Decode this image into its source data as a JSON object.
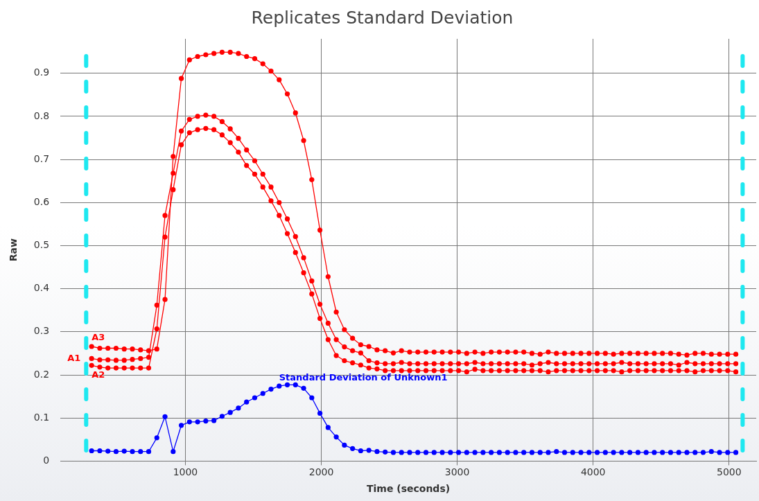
{
  "chart_data": {
    "type": "line",
    "title": "Replicates Standard Deviation",
    "xlabel": "Time (seconds)",
    "ylabel": "Raw",
    "x": [
      310,
      370,
      430,
      490,
      550,
      610,
      670,
      730,
      790,
      850,
      910,
      970,
      1030,
      1090,
      1150,
      1210,
      1270,
      1330,
      1390,
      1450,
      1510,
      1570,
      1630,
      1690,
      1750,
      1810,
      1870,
      1930,
      1990,
      2050,
      2110,
      2170,
      2230,
      2290,
      2350,
      2410,
      2470,
      2530,
      2590,
      2650,
      2710,
      2770,
      2830,
      2890,
      2950,
      3010,
      3070,
      3130,
      3190,
      3250,
      3310,
      3370,
      3430,
      3490,
      3550,
      3610,
      3670,
      3730,
      3790,
      3850,
      3910,
      3970,
      4030,
      4090,
      4150,
      4210,
      4270,
      4330,
      4390,
      4450,
      4510,
      4570,
      4630,
      4690,
      4750,
      4810,
      4870,
      4930,
      4990,
      5050
    ],
    "series": [
      {
        "name": "A3",
        "color": "#ff0000",
        "values": [
          0.266,
          0.262,
          0.262,
          0.262,
          0.26,
          0.26,
          0.258,
          0.256,
          0.26,
          0.375,
          0.707,
          0.888,
          0.931,
          0.939,
          0.943,
          0.946,
          0.949,
          0.949,
          0.946,
          0.939,
          0.934,
          0.922,
          0.905,
          0.885,
          0.852,
          0.808,
          0.744,
          0.653,
          0.536,
          0.428,
          0.346,
          0.305,
          0.285,
          0.27,
          0.266,
          0.258,
          0.256,
          0.251,
          0.256,
          0.253,
          0.253,
          0.253,
          0.253,
          0.253,
          0.253,
          0.253,
          0.25,
          0.253,
          0.25,
          0.253,
          0.253,
          0.253,
          0.253,
          0.253,
          0.25,
          0.248,
          0.253,
          0.25,
          0.25,
          0.25,
          0.25,
          0.25,
          0.25,
          0.25,
          0.248,
          0.25,
          0.25,
          0.25,
          0.25,
          0.25,
          0.25,
          0.25,
          0.248,
          0.246,
          0.25,
          0.25,
          0.248,
          0.248,
          0.248,
          0.248
        ]
      },
      {
        "name": "A1",
        "color": "#ff0000",
        "values": [
          0.238,
          0.235,
          0.235,
          0.234,
          0.234,
          0.236,
          0.238,
          0.241,
          0.362,
          0.57,
          0.668,
          0.766,
          0.793,
          0.8,
          0.803,
          0.8,
          0.788,
          0.771,
          0.749,
          0.722,
          0.697,
          0.666,
          0.636,
          0.6,
          0.562,
          0.521,
          0.472,
          0.418,
          0.364,
          0.32,
          0.282,
          0.265,
          0.256,
          0.251,
          0.233,
          0.228,
          0.226,
          0.226,
          0.229,
          0.226,
          0.226,
          0.226,
          0.226,
          0.226,
          0.226,
          0.226,
          0.226,
          0.229,
          0.226,
          0.226,
          0.226,
          0.226,
          0.226,
          0.226,
          0.223,
          0.226,
          0.229,
          0.226,
          0.226,
          0.226,
          0.226,
          0.226,
          0.226,
          0.226,
          0.226,
          0.229,
          0.226,
          0.226,
          0.226,
          0.226,
          0.226,
          0.226,
          0.223,
          0.229,
          0.226,
          0.226,
          0.226,
          0.226,
          0.226,
          0.226
        ]
      },
      {
        "name": "A2",
        "color": "#ff0000",
        "values": [
          0.222,
          0.218,
          0.216,
          0.216,
          0.216,
          0.216,
          0.216,
          0.216,
          0.307,
          0.52,
          0.63,
          0.734,
          0.762,
          0.769,
          0.772,
          0.769,
          0.757,
          0.739,
          0.717,
          0.686,
          0.666,
          0.636,
          0.604,
          0.57,
          0.528,
          0.484,
          0.437,
          0.388,
          0.331,
          0.282,
          0.245,
          0.233,
          0.228,
          0.223,
          0.216,
          0.214,
          0.21,
          0.21,
          0.21,
          0.21,
          0.21,
          0.21,
          0.21,
          0.21,
          0.21,
          0.21,
          0.207,
          0.213,
          0.21,
          0.21,
          0.21,
          0.21,
          0.21,
          0.21,
          0.21,
          0.21,
          0.207,
          0.21,
          0.21,
          0.21,
          0.21,
          0.21,
          0.21,
          0.21,
          0.21,
          0.207,
          0.21,
          0.21,
          0.21,
          0.21,
          0.21,
          0.21,
          0.21,
          0.21,
          0.207,
          0.21,
          0.21,
          0.21,
          0.21,
          0.207
        ]
      },
      {
        "name": "Standard Deviation of Unknown1",
        "color": "#0000ff",
        "values": [
          0.024,
          0.024,
          0.023,
          0.022,
          0.023,
          0.022,
          0.022,
          0.022,
          0.054,
          0.103,
          0.022,
          0.083,
          0.091,
          0.091,
          0.093,
          0.094,
          0.104,
          0.113,
          0.123,
          0.137,
          0.147,
          0.157,
          0.167,
          0.174,
          0.177,
          0.177,
          0.169,
          0.147,
          0.111,
          0.078,
          0.056,
          0.037,
          0.029,
          0.024,
          0.025,
          0.022,
          0.021,
          0.02,
          0.02,
          0.02,
          0.02,
          0.02,
          0.02,
          0.02,
          0.02,
          0.02,
          0.02,
          0.02,
          0.02,
          0.02,
          0.02,
          0.02,
          0.02,
          0.02,
          0.02,
          0.02,
          0.02,
          0.022,
          0.02,
          0.02,
          0.02,
          0.02,
          0.02,
          0.02,
          0.02,
          0.02,
          0.02,
          0.02,
          0.02,
          0.02,
          0.02,
          0.02,
          0.02,
          0.02,
          0.02,
          0.02,
          0.022,
          0.02,
          0.02,
          0.02
        ]
      }
    ],
    "xlim": [
      80,
      5200
    ],
    "xticks": [
      1000,
      2000,
      3000,
      4000,
      5000
    ],
    "ylim": [
      0,
      0.98
    ],
    "yticks": [
      0,
      0.1,
      0.2,
      0.3,
      0.4,
      0.5,
      0.6,
      0.7,
      0.8,
      0.9
    ],
    "ref_lines": [
      {
        "axis": "x",
        "value": 270,
        "color": "#1ee8f0",
        "line_style": "dashed"
      },
      {
        "axis": "x",
        "value": 5100,
        "color": "#1ee8f0",
        "line_style": "dashed"
      }
    ],
    "grid": true,
    "legend": false,
    "marker": "circle",
    "line_style": "solid"
  }
}
